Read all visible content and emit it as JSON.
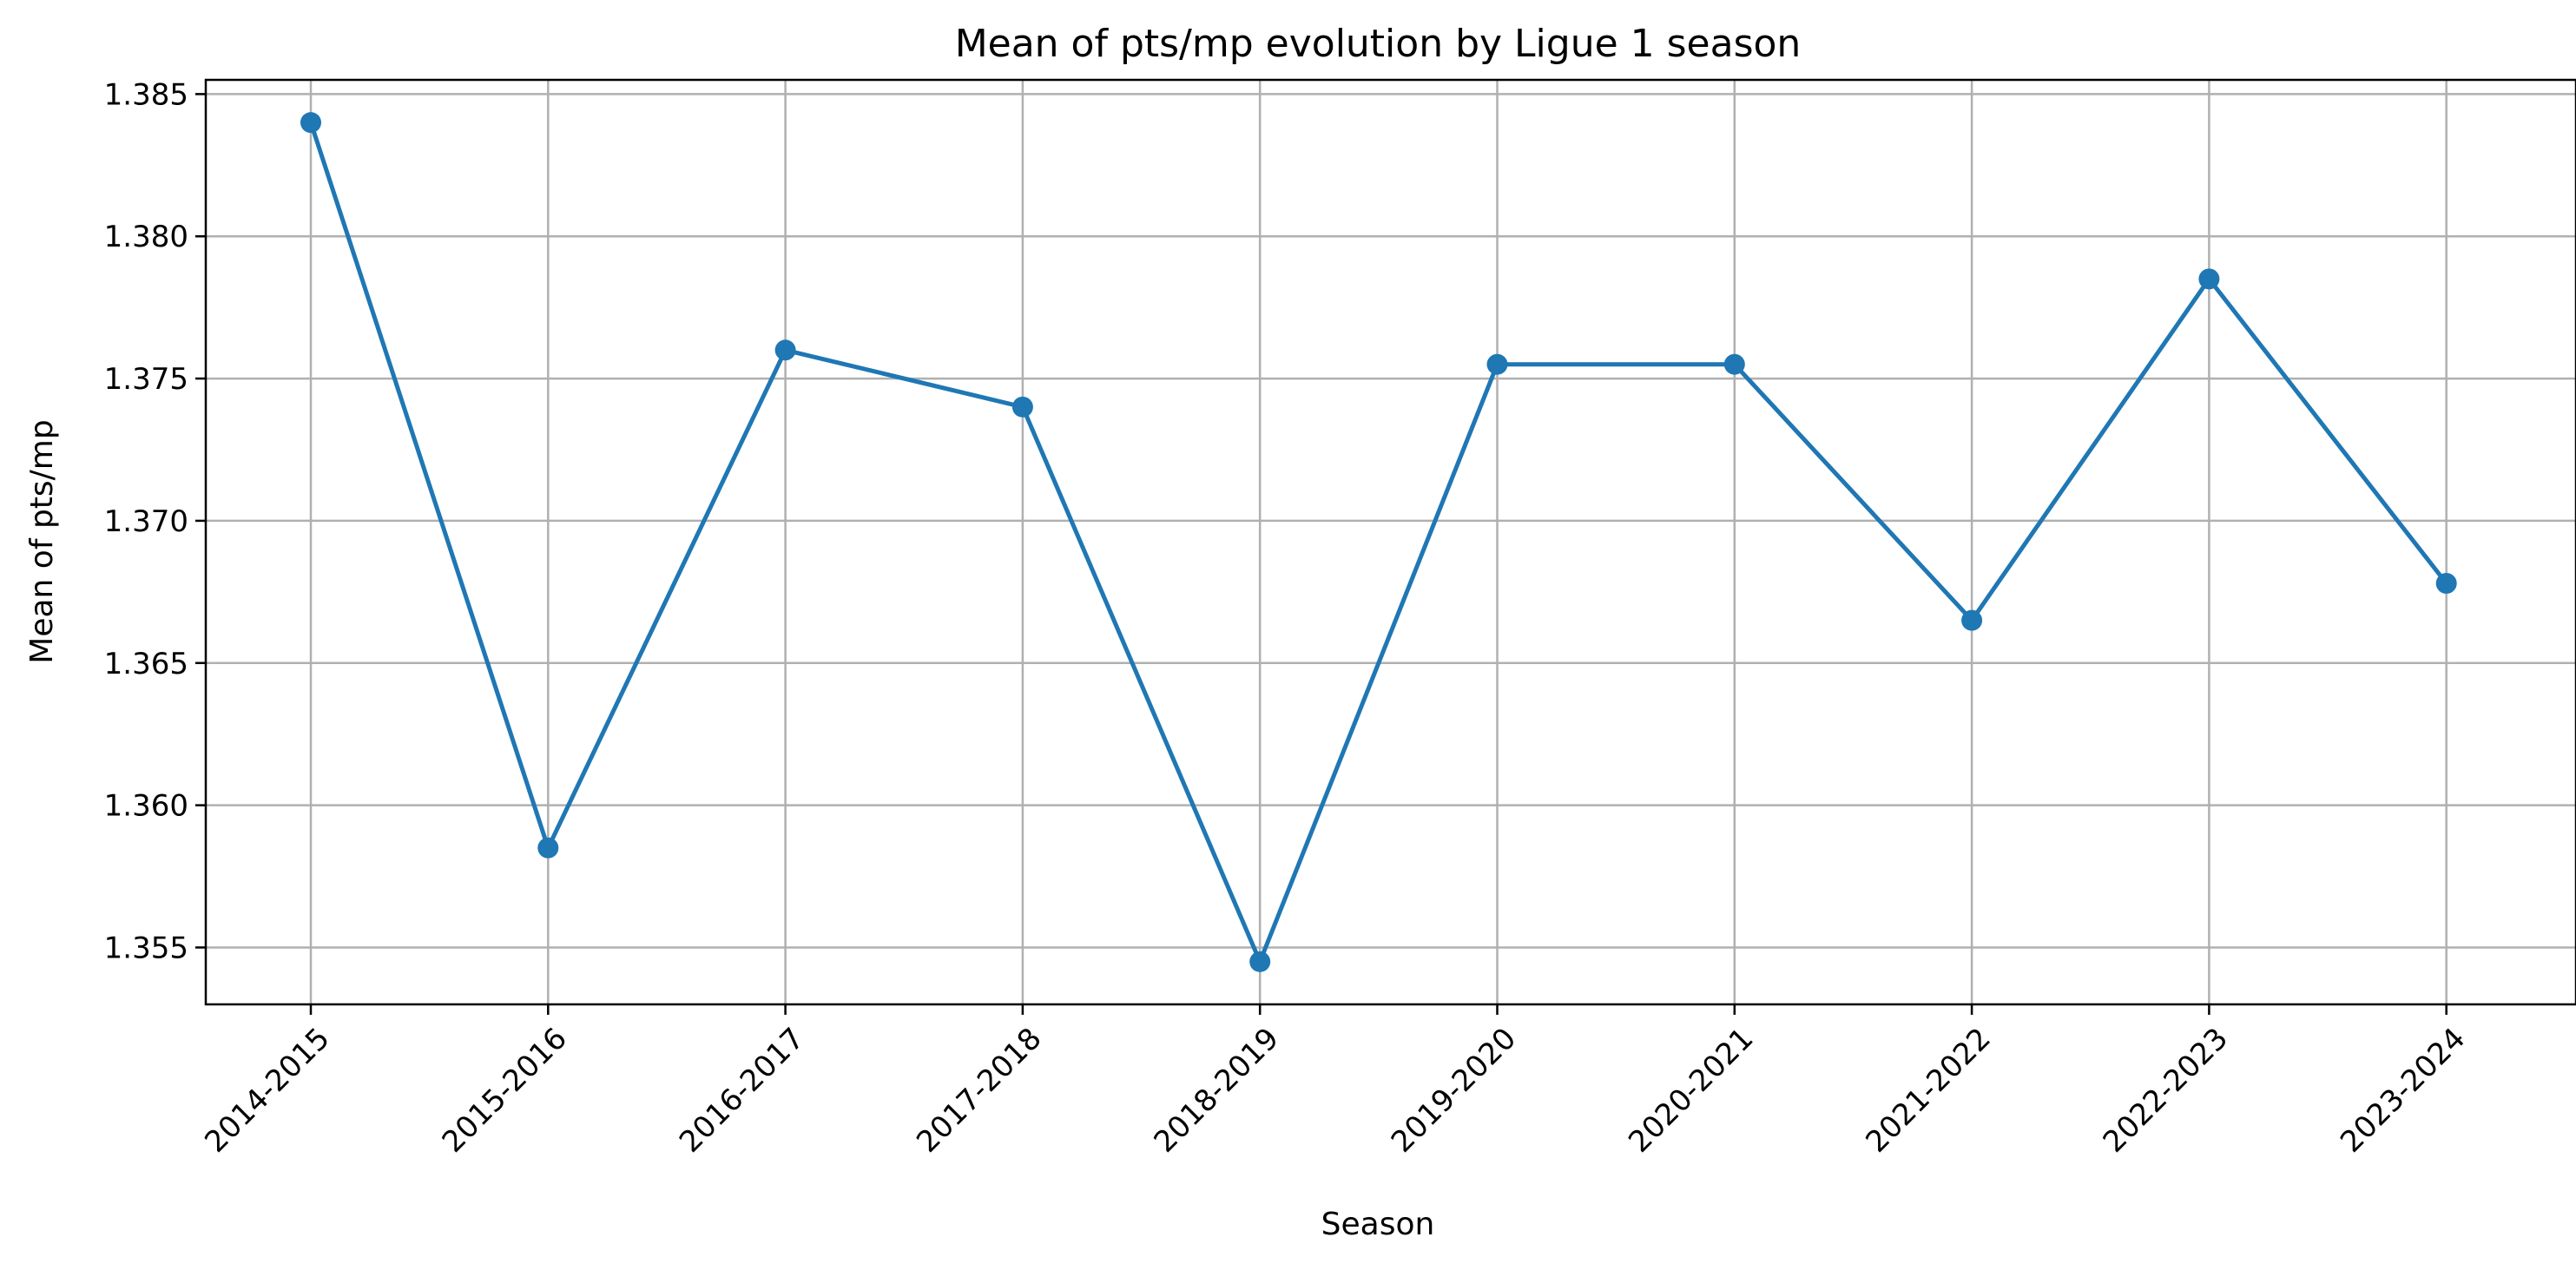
{
  "chart_data": {
    "type": "line",
    "title": "Mean of pts/mp evolution by Ligue 1 season",
    "xlabel": "Season",
    "ylabel": "Mean of pts/mp",
    "categories": [
      "2014-2015",
      "2015-2016",
      "2016-2017",
      "2017-2018",
      "2018-2019",
      "2019-2020",
      "2020-2021",
      "2021-2022",
      "2022-2023",
      "2023-2024"
    ],
    "series": [
      {
        "values": [
          1.384,
          1.3585,
          1.376,
          1.374,
          1.3545,
          1.3755,
          1.3755,
          1.3665,
          1.3785,
          1.3678
        ],
        "color": "#1f77b4",
        "marker": "circle"
      }
    ],
    "yticks": [
      "1.355",
      "1.360",
      "1.365",
      "1.370",
      "1.375",
      "1.380",
      "1.385"
    ],
    "ylim": [
      1.353,
      1.3855
    ],
    "grid": true,
    "legend": "none",
    "xtick_rotation": 45
  }
}
